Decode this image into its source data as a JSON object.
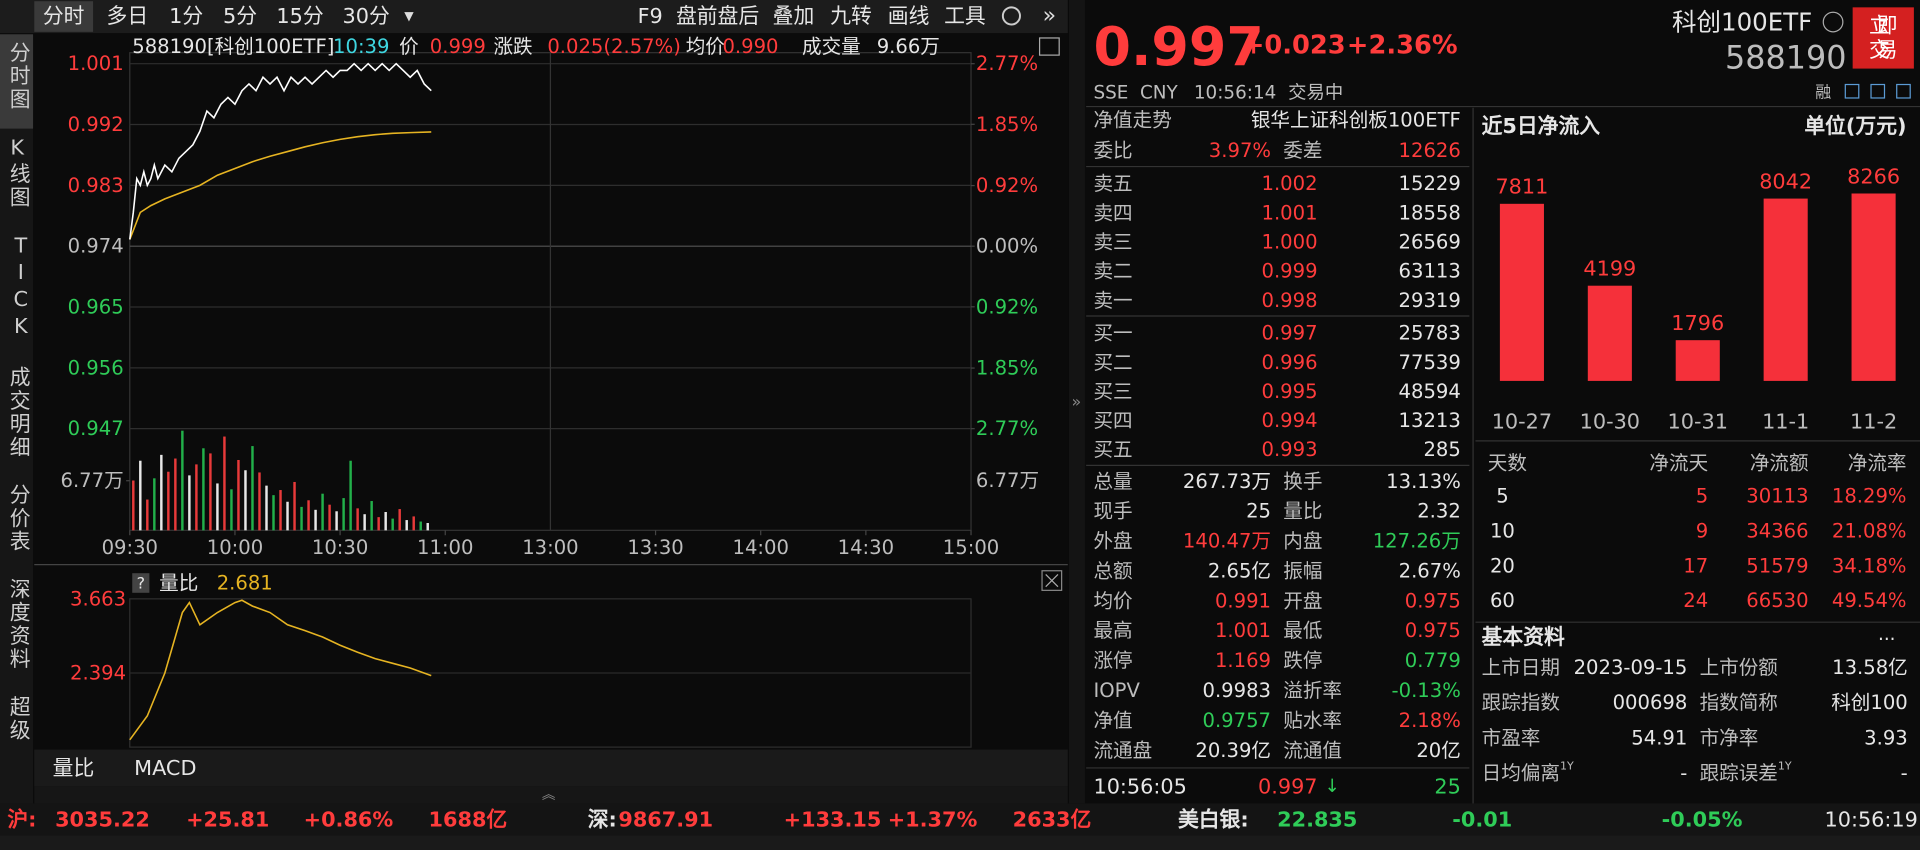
{
  "toolbar": {
    "tabs": [
      "分时",
      "多日",
      "1分",
      "5分",
      "15分",
      "30分"
    ],
    "tools": [
      "F9",
      "盘前盘后",
      "叠加",
      "九转",
      "画线",
      "工具"
    ]
  },
  "side_tabs": [
    "分时图",
    "K线图",
    "TICK",
    "成交明细",
    "分价表",
    "深度资料",
    "超级"
  ],
  "intraday": {
    "header": {
      "code": "588190[科创100ETF]",
      "time": "10:39",
      "price_label": "价",
      "price": "0.999",
      "change_label": "涨跌",
      "change": "0.025(2.57%)",
      "avg_label": "均价",
      "avg": "0.990",
      "volume_label": "成交量",
      "volume": "9.66万"
    },
    "xlim": [
      0,
      240
    ],
    "xticks": [
      {
        "value": 0,
        "label": "09:30"
      },
      {
        "value": 30,
        "label": "10:00"
      },
      {
        "value": 60,
        "label": "10:30"
      },
      {
        "value": 90,
        "label": "11:00"
      },
      {
        "value": 120,
        "label": "13:00"
      },
      {
        "value": 150,
        "label": "13:30"
      },
      {
        "value": 180,
        "label": "14:00"
      },
      {
        "value": 210,
        "label": "14:30"
      },
      {
        "value": 240,
        "label": "15:00"
      }
    ],
    "ylim": [
      0.947,
      1.001
    ],
    "yticks": [
      1.001,
      0.992,
      0.983,
      0.974,
      0.965,
      0.956,
      0.947
    ],
    "y2lim": [
      -2.77,
      2.77
    ],
    "y2ticks": [
      {
        "value": 2.77,
        "label": "2.77%"
      },
      {
        "value": 1.85,
        "label": "1.85%"
      },
      {
        "value": 0.92,
        "label": "0.92%"
      },
      {
        "value": 0,
        "label": "0.00%"
      },
      {
        "value": -0.92,
        "label": "0.92%"
      },
      {
        "value": -1.85,
        "label": "1.85%"
      },
      {
        "value": -2.77,
        "label": "2.77%"
      }
    ],
    "price_line": {
      "color": "#ffffff",
      "x": [
        0,
        1,
        2,
        3,
        4,
        5,
        6,
        7,
        8,
        10,
        12,
        14,
        16,
        18,
        20,
        22,
        24,
        26,
        28,
        30,
        32,
        34,
        36,
        38,
        40,
        42,
        44,
        46,
        48,
        50,
        52,
        54,
        56,
        58,
        60,
        62,
        64,
        66,
        68,
        70,
        72,
        74,
        76,
        78,
        80,
        82,
        84,
        86
      ],
      "values": [
        0.975,
        0.979,
        0.984,
        0.983,
        0.985,
        0.983,
        0.984,
        0.986,
        0.984,
        0.986,
        0.985,
        0.987,
        0.988,
        0.989,
        0.991,
        0.994,
        0.993,
        0.995,
        0.996,
        0.995,
        0.997,
        0.998,
        0.997,
        0.999,
        0.998,
        0.999,
        0.997,
        0.999,
        0.998,
        0.999,
        0.998,
        0.999,
        1.0,
        0.999,
        1.0,
        1.0,
        1.001,
        1.0,
        1.001,
        1.0,
        1.001,
        1.0,
        1.001,
        1.0,
        0.999,
        1.0,
        0.998,
        0.997
      ]
    },
    "avg_line": {
      "color": "#e6b422",
      "x": [
        0,
        3,
        6,
        10,
        15,
        20,
        25,
        30,
        35,
        40,
        45,
        50,
        55,
        60,
        65,
        70,
        75,
        80,
        86
      ],
      "values": [
        0.975,
        0.979,
        0.98,
        0.981,
        0.982,
        0.983,
        0.9845,
        0.9855,
        0.9865,
        0.9873,
        0.988,
        0.9887,
        0.9893,
        0.9898,
        0.9902,
        0.9905,
        0.9907,
        0.9908,
        0.9909
      ]
    },
    "volume": {
      "ylim": [
        0,
        13.54
      ],
      "yticks": [
        {
          "value": 6.77,
          "label": "6.77万"
        }
      ],
      "x": [
        1,
        3,
        5,
        7,
        9,
        11,
        13,
        15,
        17,
        19,
        21,
        23,
        25,
        27,
        29,
        31,
        33,
        35,
        37,
        39,
        41,
        43,
        45,
        47,
        49,
        51,
        53,
        55,
        57,
        59,
        61,
        63,
        65,
        67,
        69,
        71,
        73,
        75,
        77,
        79,
        81,
        83,
        85
      ],
      "values": [
        6.8,
        9.5,
        4.2,
        7.1,
        10.3,
        8.0,
        9.8,
        13.6,
        7.5,
        9.0,
        11.2,
        10.5,
        6.4,
        12.8,
        5.6,
        9.6,
        8.2,
        11.5,
        7.9,
        6.1,
        4.8,
        5.5,
        3.9,
        6.6,
        3.2,
        4.1,
        2.8,
        5.0,
        3.5,
        2.6,
        4.4,
        9.5,
        3.0,
        2.2,
        4.0,
        1.8,
        2.5,
        1.6,
        2.9,
        1.4,
        1.9,
        1.2,
        1.0
      ],
      "colors": [
        "#e83a3a",
        "#e8e8e8",
        "#e83a3a",
        "#22b04a",
        "#e8e8e8",
        "#e83a3a",
        "#e83a3a",
        "#22b04a",
        "#e8e8e8",
        "#e83a3a",
        "#22b04a",
        "#e83a3a",
        "#e8e8e8",
        "#e83a3a",
        "#22b04a",
        "#e83a3a",
        "#e8e8e8",
        "#22b04a",
        "#e83a3a",
        "#e8e8e8",
        "#22b04a",
        "#e83a3a",
        "#e8e8e8",
        "#e83a3a",
        "#22b04a",
        "#e83a3a",
        "#e8e8e8",
        "#22b04a",
        "#e83a3a",
        "#e8e8e8",
        "#22b04a",
        "#22b04a",
        "#e83a3a",
        "#e8e8e8",
        "#22b04a",
        "#e83a3a",
        "#e8e8e8",
        "#22b04a",
        "#e83a3a",
        "#e8e8e8",
        "#e83a3a",
        "#22b04a",
        "#e8e8e8"
      ]
    }
  },
  "indicator": {
    "help": "?",
    "name": "量比",
    "value": "2.681",
    "ylim": [
      1.125,
      3.663
    ],
    "yticks": [
      3.663,
      2.394
    ],
    "color": "#e6b422",
    "x": [
      0,
      5,
      10,
      15,
      17,
      20,
      25,
      30,
      32,
      35,
      40,
      45,
      50,
      55,
      60,
      65,
      70,
      75,
      80,
      86
    ],
    "values": [
      1.25,
      1.66,
      2.394,
      3.43,
      3.6,
      3.22,
      3.43,
      3.6,
      3.64,
      3.54,
      3.43,
      3.22,
      3.12,
      3.01,
      2.87,
      2.75,
      2.64,
      2.56,
      2.48,
      2.35
    ]
  },
  "bottom_tabs": [
    "量比",
    "MACD"
  ],
  "quote": {
    "price": "0.997",
    "change": "+0.023",
    "pct": "+2.36%",
    "name": "科创100ETF",
    "code": "588190",
    "trade_button": "立即交易",
    "exchange": "SSE",
    "currency": "CNY",
    "time": "10:56:14",
    "status": "交易中",
    "margin_tag": "融"
  },
  "order_book": {
    "header": {
      "label": "净值走势",
      "name": "银华上证科创板100ETF"
    },
    "ratio": {
      "label": "委比",
      "value": "3.97%",
      "diff_label": "委差",
      "diff": "12626"
    },
    "asks": [
      {
        "label": "卖五",
        "price": "1.002",
        "volume": "15229"
      },
      {
        "label": "卖四",
        "price": "1.001",
        "volume": "18558"
      },
      {
        "label": "卖三",
        "price": "1.000",
        "volume": "26569"
      },
      {
        "label": "卖二",
        "price": "0.999",
        "volume": "63113"
      },
      {
        "label": "卖一",
        "price": "0.998",
        "volume": "29319"
      }
    ],
    "bids": [
      {
        "label": "买一",
        "price": "0.997",
        "volume": "25783"
      },
      {
        "label": "买二",
        "price": "0.996",
        "volume": "77539"
      },
      {
        "label": "买三",
        "price": "0.995",
        "volume": "48594"
      },
      {
        "label": "买四",
        "price": "0.994",
        "volume": "13213"
      },
      {
        "label": "买五",
        "price": "0.993",
        "volume": "285"
      }
    ]
  },
  "stats": [
    [
      "总量",
      "267.73万",
      "换手",
      "13.13%"
    ],
    [
      "现手",
      "25",
      "量比",
      "2.32"
    ],
    [
      "外盘",
      "140.47万",
      "内盘",
      "127.26万"
    ],
    [
      "总额",
      "2.65亿",
      "振幅",
      "2.67%"
    ],
    [
      "均价",
      "0.991",
      "开盘",
      "0.975"
    ],
    [
      "最高",
      "1.001",
      "最低",
      "0.975"
    ],
    [
      "涨停",
      "1.169",
      "跌停",
      "0.779"
    ],
    [
      "IOPV",
      "0.9983",
      "溢折率",
      "-0.13%"
    ],
    [
      "净值",
      "0.9757",
      "贴水率",
      "2.18%"
    ],
    [
      "流通盘",
      "20.39亿",
      "流通值",
      "20亿"
    ]
  ],
  "last_trade": {
    "time": "10:56:05",
    "price": "0.997",
    "arrow": "↓",
    "volume": "25"
  },
  "net_inflow": {
    "title": "近5日净流入",
    "unit": "单位(万元)",
    "color": "#f5303a",
    "categories": [
      "10-27",
      "10-30",
      "10-31",
      "11-1",
      "11-2"
    ],
    "values": [
      7811,
      4199,
      1796,
      8042,
      8266
    ],
    "ylim": [
      0,
      9000
    ],
    "table": {
      "header": [
        "天数",
        "净流天",
        "净流额",
        "净流率"
      ],
      "rows": [
        [
          "5",
          "5",
          "30113",
          "18.29%"
        ],
        [
          "10",
          "9",
          "34366",
          "21.08%"
        ],
        [
          "20",
          "17",
          "51579",
          "34.18%"
        ],
        [
          "60",
          "24",
          "66530",
          "49.54%"
        ]
      ]
    }
  },
  "basic_info": {
    "title": "基本资料",
    "more": "...",
    "rows": [
      [
        "上市日期",
        "2023-09-15",
        "上市份额",
        "13.58亿"
      ],
      [
        "跟踪指数",
        "000698",
        "指数简称",
        "科创100"
      ],
      [
        "市盈率",
        "54.91",
        "市净率",
        "3.93"
      ],
      [
        "日均偏离",
        "-",
        "跟踪误差",
        "-"
      ]
    ],
    "sup": "1Y"
  },
  "status_bar": {
    "markets": [
      {
        "name": "沪:",
        "index": "3035.22",
        "change": "+25.81",
        "pct": "+0.86%",
        "amount": "1688亿"
      },
      {
        "name": "深:",
        "index": "9867.91",
        "change": "+133.15",
        "pct": "+1.37%",
        "amount": "2633亿"
      },
      {
        "name": "美白银:",
        "index": "22.835",
        "change": "-0.01",
        "pct": "-0.05%"
      }
    ],
    "time": "10:56:19"
  }
}
